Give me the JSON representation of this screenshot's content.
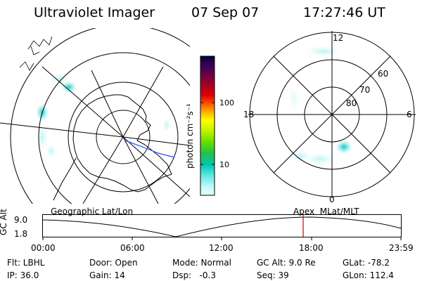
{
  "header": {
    "instrument": "Ultraviolet Imager",
    "date": "07 Sep 07",
    "time": "17:27:46 UT"
  },
  "colorbar": {
    "label": "photon cm⁻²s⁻¹",
    "ticks": [
      "100",
      "10"
    ],
    "colors": [
      "#000040",
      "#200050",
      "#400060",
      "#600040",
      "#900020",
      "#c00010",
      "#f00000",
      "#ff5000",
      "#ff9000",
      "#ffd000",
      "#ffff00",
      "#c0f000",
      "#70e000",
      "#20d020",
      "#00c080",
      "#00d0c0",
      "#40e0e0",
      "#90f0f0",
      "#c8f8f8",
      "#eaffff"
    ]
  },
  "polar_plot": {
    "labels": [
      "12",
      "18",
      "6",
      "0",
      "60",
      "70",
      "80"
    ]
  },
  "timeline": {
    "left_title": "Geographic Lat/Lon",
    "right_title": "Apex  MLat/MLT",
    "axis_label": "GC Alt",
    "y_ticks": [
      "9.0",
      "1.8"
    ],
    "x_ticks": [
      "00:00",
      "06:00",
      "12:00",
      "18:00",
      "23:59"
    ],
    "marker_color": "#cc0000"
  },
  "status": {
    "flt": "Flt: LBHL",
    "ip": "IP: 36.0",
    "door": "Door: Open",
    "gain": "Gain: 14",
    "mode": "Mode: Normal",
    "dsp": "Dsp:   -0.3",
    "gcalt": "GC Alt: 9.0 Re",
    "seq": "Seq: 39",
    "glat": "GLat: -78.2",
    "glon": "GLon: 112.4"
  }
}
